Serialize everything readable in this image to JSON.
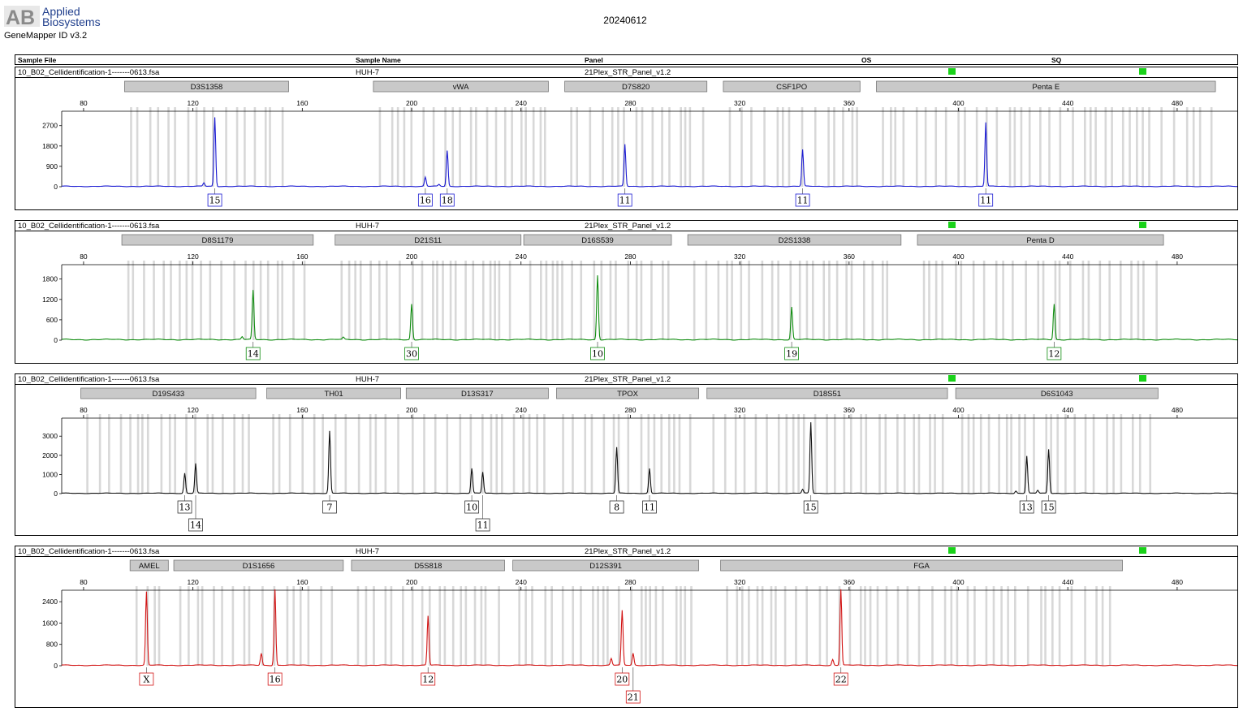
{
  "app": {
    "logo_mark": "AB",
    "logo_line1": "Applied",
    "logo_line2": "Biosystems",
    "product": "GeneMapper ID v3.2",
    "title": "20240612"
  },
  "table_header": {
    "sample_file": "Sample File",
    "sample_name": "Sample Name",
    "panel": "Panel",
    "os": "OS",
    "sq": "SQ"
  },
  "colors": {
    "qc_ok": "#19d219"
  },
  "chart_data": [
    {
      "type": "line",
      "dye": "blue",
      "color": "#1a1ad2",
      "sample_file": "10_B02_Cellidentification-1-------0613.fsa",
      "sample_name": "HUH-7",
      "panel": "21Plex_STR_Panel_v1.2",
      "xlim": [
        72,
        502
      ],
      "x_ticks": [
        80,
        120,
        160,
        200,
        240,
        280,
        320,
        360,
        400,
        440,
        480
      ],
      "ylim": [
        0,
        3300
      ],
      "y_ticks": [
        0,
        900,
        1800,
        2700
      ],
      "markers": [
        {
          "name": "D3S1358",
          "start": 95,
          "end": 155
        },
        {
          "name": "vWA",
          "start": 186,
          "end": 250
        },
        {
          "name": "D7S820",
          "start": 256,
          "end": 308
        },
        {
          "name": "CSF1PO",
          "start": 314,
          "end": 364
        },
        {
          "name": "Penta E",
          "start": 370,
          "end": 494
        }
      ],
      "peaks": [
        {
          "x": 128,
          "y": 3050
        },
        {
          "x": 124,
          "y": 150
        },
        {
          "x": 205,
          "y": 400
        },
        {
          "x": 213,
          "y": 1580
        },
        {
          "x": 210,
          "y": 80
        },
        {
          "x": 278,
          "y": 1850
        },
        {
          "x": 343,
          "y": 1620
        },
        {
          "x": 410,
          "y": 2820
        }
      ],
      "alleles": [
        {
          "x": 128,
          "label": "15",
          "row": 0
        },
        {
          "x": 205,
          "label": "16",
          "row": 0
        },
        {
          "x": 213,
          "label": "18",
          "row": 0
        },
        {
          "x": 278,
          "label": "11",
          "row": 0
        },
        {
          "x": 343,
          "label": "11",
          "row": 0
        },
        {
          "x": 410,
          "label": "11",
          "row": 0
        }
      ]
    },
    {
      "type": "line",
      "dye": "green",
      "color": "#0f8c0f",
      "sample_file": "10_B02_Cellidentification-1-------0613.fsa",
      "sample_name": "HUH-7",
      "panel": "21Plex_STR_Panel_v1.2",
      "xlim": [
        72,
        502
      ],
      "x_ticks": [
        80,
        120,
        160,
        200,
        240,
        280,
        320,
        360,
        400,
        440,
        480
      ],
      "ylim": [
        0,
        2200
      ],
      "y_ticks": [
        0,
        600,
        1200,
        1800
      ],
      "markers": [
        {
          "name": "D8S1179",
          "start": 94,
          "end": 164
        },
        {
          "name": "D21S11",
          "start": 172,
          "end": 240
        },
        {
          "name": "D16S539",
          "start": 241,
          "end": 295
        },
        {
          "name": "D2S1338",
          "start": 301,
          "end": 379
        },
        {
          "name": "Penta D",
          "start": 385,
          "end": 475
        }
      ],
      "peaks": [
        {
          "x": 142,
          "y": 1450
        },
        {
          "x": 138,
          "y": 80
        },
        {
          "x": 200,
          "y": 1050
        },
        {
          "x": 268,
          "y": 1900
        },
        {
          "x": 339,
          "y": 960
        },
        {
          "x": 435,
          "y": 1050
        },
        {
          "x": 175,
          "y": 60
        }
      ],
      "alleles": [
        {
          "x": 142,
          "label": "14",
          "row": 0
        },
        {
          "x": 200,
          "label": "30",
          "row": 0
        },
        {
          "x": 268,
          "label": "10",
          "row": 0
        },
        {
          "x": 339,
          "label": "19",
          "row": 0
        },
        {
          "x": 435,
          "label": "12",
          "row": 0
        }
      ]
    },
    {
      "type": "line",
      "dye": "black",
      "color": "#111111",
      "sample_file": "10_B02_Cellidentification-1-------0613.fsa",
      "sample_name": "HUH-7",
      "panel": "21Plex_STR_Panel_v1.2",
      "xlim": [
        72,
        502
      ],
      "x_ticks": [
        80,
        120,
        160,
        200,
        240,
        280,
        320,
        360,
        400,
        440,
        480
      ],
      "ylim": [
        0,
        3900
      ],
      "y_ticks": [
        0,
        1000,
        2000,
        3000
      ],
      "markers": [
        {
          "name": "D19S433",
          "start": 79,
          "end": 143
        },
        {
          "name": "TH01",
          "start": 147,
          "end": 196
        },
        {
          "name": "D13S317",
          "start": 198,
          "end": 250
        },
        {
          "name": "TPOX",
          "start": 253,
          "end": 305
        },
        {
          "name": "D18S51",
          "start": 308,
          "end": 396
        },
        {
          "name": "D6S1043",
          "start": 399,
          "end": 473
        }
      ],
      "peaks": [
        {
          "x": 117,
          "y": 1050
        },
        {
          "x": 121,
          "y": 1550
        },
        {
          "x": 170,
          "y": 3250
        },
        {
          "x": 222,
          "y": 1300
        },
        {
          "x": 226,
          "y": 1100
        },
        {
          "x": 275,
          "y": 2400
        },
        {
          "x": 287,
          "y": 1300
        },
        {
          "x": 346,
          "y": 3700
        },
        {
          "x": 343,
          "y": 200
        },
        {
          "x": 425,
          "y": 1950
        },
        {
          "x": 433,
          "y": 2300
        },
        {
          "x": 421,
          "y": 120
        },
        {
          "x": 429,
          "y": 150
        }
      ],
      "alleles": [
        {
          "x": 117,
          "label": "13",
          "row": 0
        },
        {
          "x": 121,
          "label": "14",
          "row": 1
        },
        {
          "x": 170,
          "label": "7",
          "row": 0
        },
        {
          "x": 222,
          "label": "10",
          "row": 0
        },
        {
          "x": 226,
          "label": "11",
          "row": 1
        },
        {
          "x": 275,
          "label": "8",
          "row": 0
        },
        {
          "x": 287,
          "label": "11",
          "row": 0
        },
        {
          "x": 346,
          "label": "15",
          "row": 0
        },
        {
          "x": 425,
          "label": "13",
          "row": 0
        },
        {
          "x": 433,
          "label": "15",
          "row": 0
        }
      ]
    },
    {
      "type": "line",
      "dye": "red",
      "color": "#d21414",
      "sample_file": "10_B02_Cellidentification-1-------0613.fsa",
      "sample_name": "HUH-7",
      "panel": "21Plex_STR_Panel_v1.2",
      "xlim": [
        72,
        502
      ],
      "x_ticks": [
        80,
        120,
        160,
        200,
        240,
        280,
        320,
        360,
        400,
        440,
        480
      ],
      "ylim": [
        0,
        2800
      ],
      "y_ticks": [
        0,
        800,
        1600,
        2400
      ],
      "markers": [
        {
          "name": "AMEL",
          "start": 97,
          "end": 111
        },
        {
          "name": "D1S1656",
          "start": 113,
          "end": 175
        },
        {
          "name": "D5S818",
          "start": 178,
          "end": 234
        },
        {
          "name": "D12S391",
          "start": 237,
          "end": 305
        },
        {
          "name": "FGA",
          "start": 313,
          "end": 460
        }
      ],
      "peaks": [
        {
          "x": 103,
          "y": 2750
        },
        {
          "x": 150,
          "y": 2850
        },
        {
          "x": 145,
          "y": 450
        },
        {
          "x": 206,
          "y": 1850
        },
        {
          "x": 277,
          "y": 2050
        },
        {
          "x": 281,
          "y": 450
        },
        {
          "x": 273,
          "y": 250
        },
        {
          "x": 357,
          "y": 2850
        },
        {
          "x": 354,
          "y": 220
        }
      ],
      "alleles": [
        {
          "x": 103,
          "label": "X",
          "row": 0
        },
        {
          "x": 150,
          "label": "16",
          "row": 0
        },
        {
          "x": 206,
          "label": "12",
          "row": 0
        },
        {
          "x": 277,
          "label": "20",
          "row": 0
        },
        {
          "x": 281,
          "label": "21",
          "row": 1
        },
        {
          "x": 357,
          "label": "22",
          "row": 0
        }
      ]
    }
  ]
}
